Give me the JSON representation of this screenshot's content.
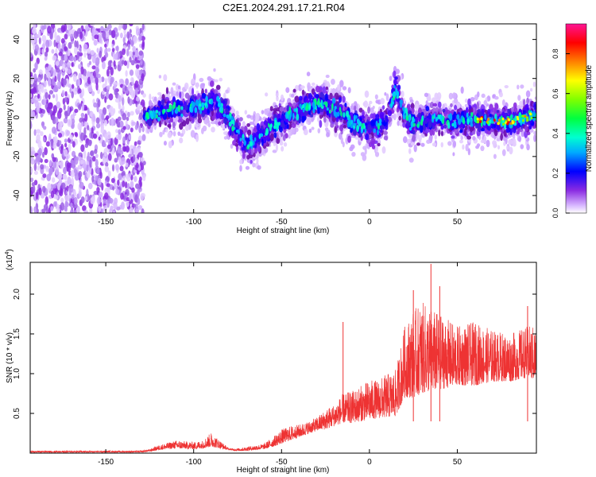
{
  "title": "C2E1.2024.291.17.21.R04",
  "chart_data": [
    {
      "type": "heatmap",
      "xlabel": "Height of straight line (km)",
      "ylabel": "Frequency (Hz)",
      "xlim": [
        -193,
        95
      ],
      "ylim": [
        -49,
        48
      ],
      "xticks": [
        -150,
        -100,
        -50,
        0,
        50
      ],
      "yticks": [
        -40,
        -20,
        0,
        20,
        40
      ],
      "colorbar": {
        "label": "Normalized spectral amplitude",
        "range": [
          0,
          0.95
        ],
        "ticks": [
          0.0,
          0.2,
          0.4,
          0.6,
          0.8
        ],
        "colors": [
          "#ffffff",
          "#c79bff",
          "#8a2be2",
          "#4b00ff",
          "#0000ff",
          "#00bfff",
          "#00ffc8",
          "#00ff00",
          "#c8ff00",
          "#ffff00",
          "#ff8000",
          "#ff0000",
          "#ff1493"
        ]
      },
      "ridge": {
        "x": [
          -130,
          -120,
          -110,
          -100,
          -90,
          -85,
          -80,
          -75,
          -70,
          -65,
          -60,
          -55,
          -50,
          -45,
          -40,
          -35,
          -30,
          -25,
          -20,
          -15,
          -10,
          -5,
          0,
          5,
          10,
          15,
          20,
          25,
          30,
          40,
          50,
          60,
          70,
          80,
          90,
          95
        ],
        "y": [
          0,
          2,
          4,
          5,
          8,
          6,
          0,
          -8,
          -14,
          -12,
          -8,
          -4,
          -2,
          2,
          4,
          6,
          7,
          8,
          4,
          2,
          -2,
          -4,
          -6,
          -4,
          0,
          15,
          2,
          -4,
          -2,
          0,
          -2,
          -1,
          -2,
          -2,
          0,
          2
        ]
      },
      "noise_region_end": -128
    },
    {
      "type": "line",
      "xlabel": "Height of straight line (km)",
      "ylabel": "SNR (10 * v/v)",
      "exponent_label": "(x10",
      "exponent_power": "4",
      "exponent_close": ")",
      "xlim": [
        -193,
        95
      ],
      "ylim": [
        0,
        2.4
      ],
      "xticks": [
        -150,
        -100,
        -50,
        0,
        50
      ],
      "yticks": [
        0.5,
        1.0,
        1.5,
        2.0
      ],
      "color": "#ee3333",
      "envelope": {
        "x": [
          -193,
          -130,
          -125,
          -120,
          -110,
          -100,
          -95,
          -90,
          -85,
          -80,
          -75,
          -70,
          -60,
          -55,
          -50,
          -45,
          -40,
          -35,
          -30,
          -25,
          -20,
          -15,
          -10,
          -5,
          0,
          5,
          10,
          15,
          20,
          25,
          30,
          40,
          50,
          60,
          70,
          80,
          90,
          95
        ],
        "low": [
          0.01,
          0.01,
          0.02,
          0.04,
          0.06,
          0.05,
          0.06,
          0.08,
          0.06,
          0.04,
          0.03,
          0.03,
          0.05,
          0.08,
          0.12,
          0.16,
          0.2,
          0.24,
          0.28,
          0.3,
          0.34,
          0.38,
          0.38,
          0.4,
          0.42,
          0.44,
          0.45,
          0.46,
          0.7,
          0.7,
          0.75,
          0.8,
          0.85,
          0.85,
          0.9,
          0.9,
          0.95,
          0.9
        ],
        "high": [
          0.03,
          0.03,
          0.05,
          0.1,
          0.16,
          0.14,
          0.16,
          0.26,
          0.16,
          0.06,
          0.06,
          0.08,
          0.12,
          0.2,
          0.3,
          0.34,
          0.36,
          0.4,
          0.45,
          0.55,
          0.62,
          0.75,
          0.78,
          0.85,
          0.92,
          0.92,
          1.0,
          1.05,
          1.6,
          1.8,
          1.9,
          1.75,
          1.6,
          1.65,
          1.55,
          1.5,
          1.6,
          1.6
        ]
      },
      "spikes": [
        {
          "x": -15,
          "y": 1.65
        },
        {
          "x": 35,
          "y": 2.38
        },
        {
          "x": 25,
          "y": 2.05
        },
        {
          "x": 40,
          "y": 2.1
        },
        {
          "x": 90,
          "y": 1.85
        }
      ]
    }
  ]
}
